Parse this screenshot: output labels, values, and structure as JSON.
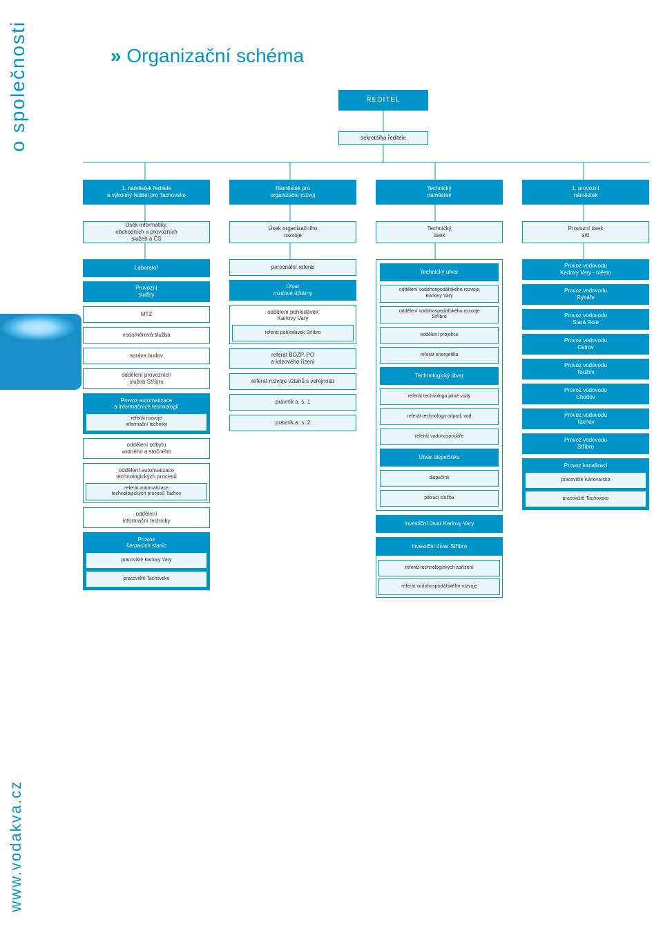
{
  "side_top": "o společnosti",
  "side_bottom": "www.vodakva.cz",
  "title_marker": "»",
  "title_text": " Organizační schéma",
  "colors": {
    "accent": "#0095c8",
    "light": "#e9f6fb",
    "text": "#333333",
    "bg": "#ffffff"
  },
  "director": "ŘEDITEL",
  "secretary": "sekretářka ředitele",
  "deputies": [
    "1. náměstek ředitele\na výkonný ředitel pro Tachovsko",
    "Náměstek pro\norganizační rozvoj",
    "Technický\nnáměstek",
    "1. provozní\nnáměstek"
  ],
  "sections": [
    "Úsek informatiky,\nobchodních a provozních\nslužeb a ČS",
    "Úsek organizačního\nrozvoje",
    "Technický\núsek",
    "Provozní úsek\nsítí"
  ],
  "col1": {
    "lab": "Laboratoř",
    "provoz_sluzby": "Provozní\nslužby",
    "mtz": "MTZ",
    "vodomer": "vodoměrová služba",
    "sprava": "správa budov",
    "odd_prov_stribro": "oddělení provozních\nslužeb Stříbro",
    "auto_it_title": "Provoz automatizace\na informačních technologií",
    "ref_rozvoje_it": "referát rozvoje\ninformační techniky",
    "odd_odbytu": "oddělení odbytu\nvodného a stočného",
    "odd_auto_tech": "oddělení automatizace\ntechnologických procesů",
    "ref_auto_tachov": "referát automatizace\ntechnologických procesů Tachov",
    "odd_inf_tech": "oddělení\ninformační techniky",
    "provoz_cs_title": "Provoz\nčerpacích stanic",
    "prac_kv": "pracoviště Karlovy Vary",
    "prac_ta": "pracoviště Tachovsko"
  },
  "col2": {
    "personal": "personální referát",
    "mzdy": "Útvar\nmzdové účtárny",
    "pohledavky_kv": "oddělení pohledávek\nKarlovy Vary",
    "ref_pohl_stribro": "referát pohledávek Stříbro",
    "bozp": "referát BOZP, PO\na krizového řízení",
    "verejnost": "referát rozvoje vztahů s veřejností",
    "pravnik1": "právník a. s. 1",
    "pravnik2": "právník a. s. 2"
  },
  "col3": {
    "tech_utvar": "Technický útvar",
    "vh_kv": "oddělení vodohospodářského rozvoje\nKarlovy Vary",
    "vh_st": "oddělení vodohospodářského rozvoje\nStříbro",
    "projekce": "oddělení projekce",
    "energetika": "referát energetika",
    "tech_log_utvar": "Technologický útvar",
    "technolog_pitna": "referát technologa pitné vody",
    "technolog_odpad": "referát technologa odpad. vod",
    "vodohospodar": "referát vodohospodáře",
    "dispecink_utvar": "Útvar dispečinku",
    "dispecink": "dispečink",
    "patraci": "pátrací služba",
    "invest_kv": "Investiční útvar Karlovy Vary",
    "invest_st": "Investiční útvar Stříbro",
    "ref_tech_zar": "referát technologických zařízení",
    "ref_vh_rozvoje": "referát vodohospodářského rozvoje"
  },
  "col4": {
    "items": [
      "Provoz vodovodu\nKarlovy Vary - město",
      "Provoz vodovodu\nRybáře",
      "Provoz vodovodu\nStará Role",
      "Provoz vodovodu\nOstrov",
      "Provoz vodovodu\nToužim",
      "Provoz vodovodu\nChodov",
      "Provoz vodovodu\nTachov",
      "Provoz vodovodu\nStříbro"
    ],
    "kanal": "Provoz kanalizací",
    "kanal_kv": "pracoviště Karlovarsko",
    "kanal_ta": "pracoviště Tachovsko"
  }
}
